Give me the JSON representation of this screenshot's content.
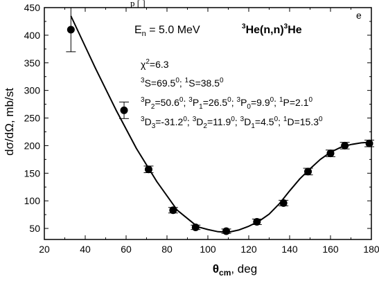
{
  "header_fragment": "p                                  [  ]",
  "chart_data": {
    "type": "scatter",
    "panel_label": "e",
    "xlabel": "θcm, deg",
    "xlabel_main": "θ",
    "xlabel_sub": "cm",
    "xlabel_unit": ", deg",
    "ylabel": "dσ/dΩ, mb/st",
    "xlim": [
      20,
      180
    ],
    "ylim": [
      30,
      450
    ],
    "xticks": [
      "20",
      "40",
      "60",
      "80",
      "100",
      "120",
      "140",
      "160",
      "180"
    ],
    "yticks": [
      "50",
      "100",
      "150",
      "200",
      "250",
      "300",
      "350",
      "400",
      "450"
    ],
    "series": [
      {
        "kind": "points",
        "x": [
          33,
          59,
          71,
          83,
          94,
          109,
          124,
          137,
          149,
          160,
          167,
          179
        ],
        "y": [
          410,
          264,
          157,
          83,
          52,
          45,
          62,
          96,
          153,
          186,
          200,
          204
        ],
        "err": [
          40,
          15,
          6,
          5,
          4,
          4,
          5,
          5,
          6,
          6,
          6,
          6
        ]
      },
      {
        "kind": "curve",
        "x": [
          33,
          45,
          55,
          65,
          75,
          85,
          95,
          100,
          105,
          110,
          115,
          120,
          125,
          130,
          135,
          140,
          145,
          150,
          155,
          160,
          165,
          170,
          175,
          179
        ],
        "y": [
          435,
          340,
          265,
          195,
          135,
          83,
          53,
          48,
          44,
          43,
          47,
          54,
          63,
          76,
          95,
          118,
          140,
          158,
          175,
          188,
          197,
          202,
          205,
          206
        ]
      }
    ],
    "annotations": {
      "energy_main": "E",
      "energy_sub": "n",
      "energy_rest": " = 5.0 MeV",
      "reaction": {
        "pre_sup": "3",
        "mid": "He(n,n)",
        "mid_sup": "3",
        "post": "He"
      },
      "chi2": {
        "base": "χ",
        "sup": "2",
        "rest": "=6.3"
      },
      "line_s": [
        {
          "sup": "3",
          "text": "S=69.5"
        },
        {
          "sup": "0",
          "text": "; "
        },
        {
          "sup": "1",
          "text": "S=38.5"
        },
        {
          "sup": "0",
          "text": ""
        }
      ],
      "line_p": [
        {
          "sup": "3",
          "text": "P"
        },
        {
          "sub": "2",
          "text": "=50.6"
        },
        {
          "sup": "0",
          "text": "; "
        },
        {
          "sup": "3",
          "text": "P"
        },
        {
          "sub": "1",
          "text": "=26.5"
        },
        {
          "sup": "0",
          "text": "; "
        },
        {
          "sup": "3",
          "text": "P"
        },
        {
          "sub": "0",
          "text": "=9.9"
        },
        {
          "sup": "0",
          "text": "; "
        },
        {
          "sup": "1",
          "text": "P=2.1"
        },
        {
          "sup": "0",
          "text": ""
        }
      ],
      "line_d": [
        {
          "sup": "3",
          "text": "D"
        },
        {
          "sub": "3",
          "text": "=-31.2"
        },
        {
          "sup": "0",
          "text": "; "
        },
        {
          "sup": "3",
          "text": "D"
        },
        {
          "sub": "2",
          "text": "=11.9"
        },
        {
          "sup": "0",
          "text": "; "
        },
        {
          "sup": "3",
          "text": "D"
        },
        {
          "sub": "1",
          "text": "=4.5"
        },
        {
          "sup": "0",
          "text": "; "
        },
        {
          "sup": "1",
          "text": "D=15.3"
        },
        {
          "sup": "0",
          "text": ""
        }
      ]
    }
  }
}
